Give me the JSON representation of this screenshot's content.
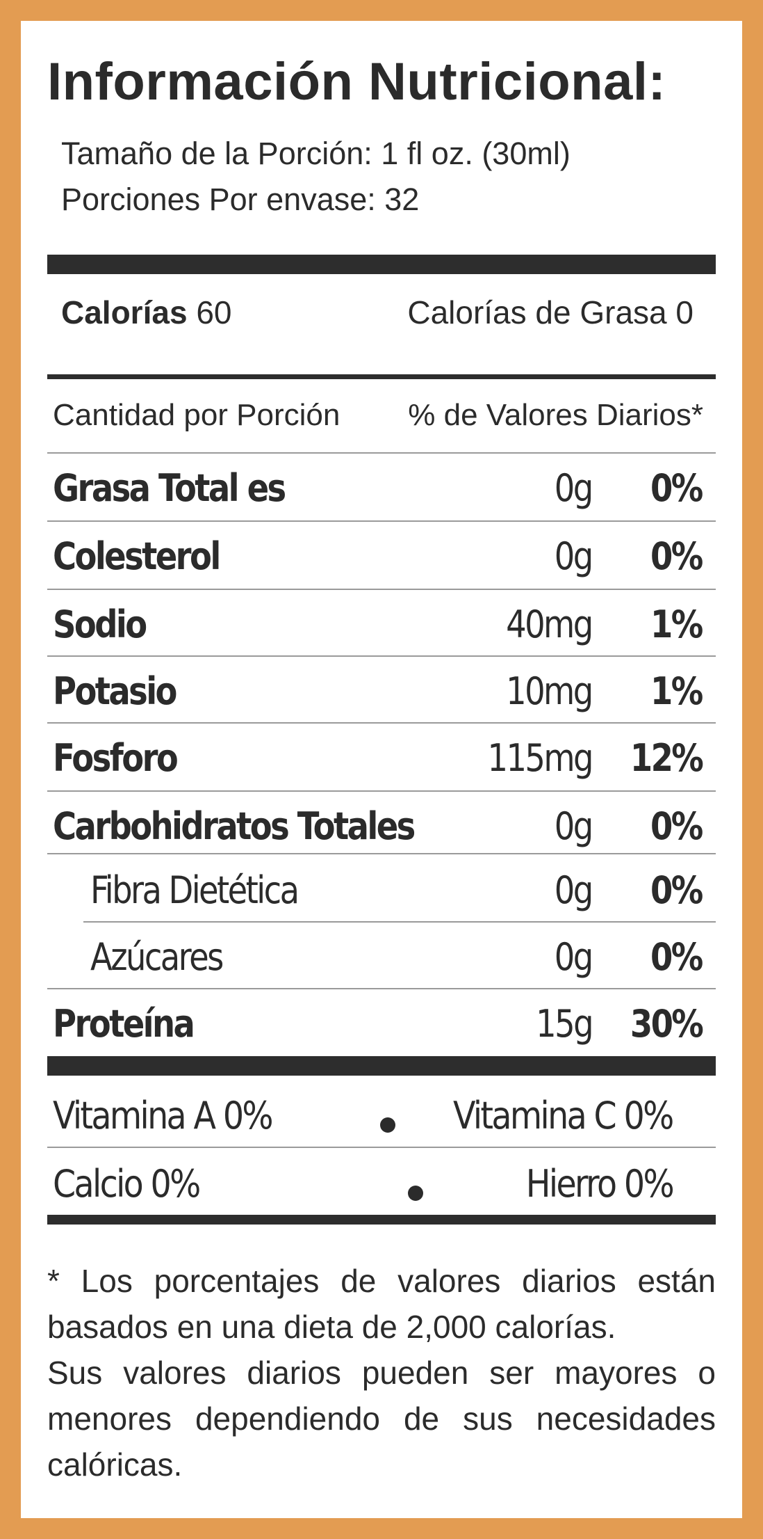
{
  "label": {
    "title": "Información Nutricional:",
    "serving_size": "Tamaño de la Porción: 1 fl oz. (30ml)",
    "servings_per_container": "Porciones Por envase: 32",
    "calories_label": "Calorías",
    "calories_value": "60",
    "fat_calories": "Calorías de Grasa 0",
    "amount_header": "Cantidad por Porción",
    "dv_header": "% de Valores Diarios*",
    "nutrients": [
      {
        "name": "Grasa Total es",
        "amount": "0g",
        "dv": "0%"
      },
      {
        "name": "Colesterol",
        "amount": "0g",
        "dv": "0%"
      },
      {
        "name": "Sodio",
        "amount": "40mg",
        "dv": "1%"
      },
      {
        "name": "Potasio",
        "amount": "10mg",
        "dv": "1%"
      },
      {
        "name": "Fosforo",
        "amount": "115mg",
        "dv": "12%"
      },
      {
        "name": "Carbohidratos Totales",
        "amount": "0g",
        "dv": "0%"
      },
      {
        "name": "Fibra Dietética",
        "amount": "0g",
        "dv": "0%"
      },
      {
        "name": "Azúcares",
        "amount": "0g",
        "dv": "0%"
      },
      {
        "name": "Proteína",
        "amount": "15g",
        "dv": "30%"
      }
    ],
    "vitamins": {
      "vitamin_a": "Vitamina A 0%",
      "vitamin_c": "Vitamina C 0%",
      "calcium": "Calcio 0%",
      "iron": "Hierro 0%"
    },
    "footnote_1": "* Los porcentajes de valores diarios están basados en una dieta de 2,000 calorías.",
    "footnote_2": "Sus valores diarios pueden ser mayores o menores dependiendo de sus necesidades calóricas."
  },
  "colors": {
    "frame": "#e39c52",
    "text": "#2b2b2b",
    "bars": "#2d2d2d"
  }
}
